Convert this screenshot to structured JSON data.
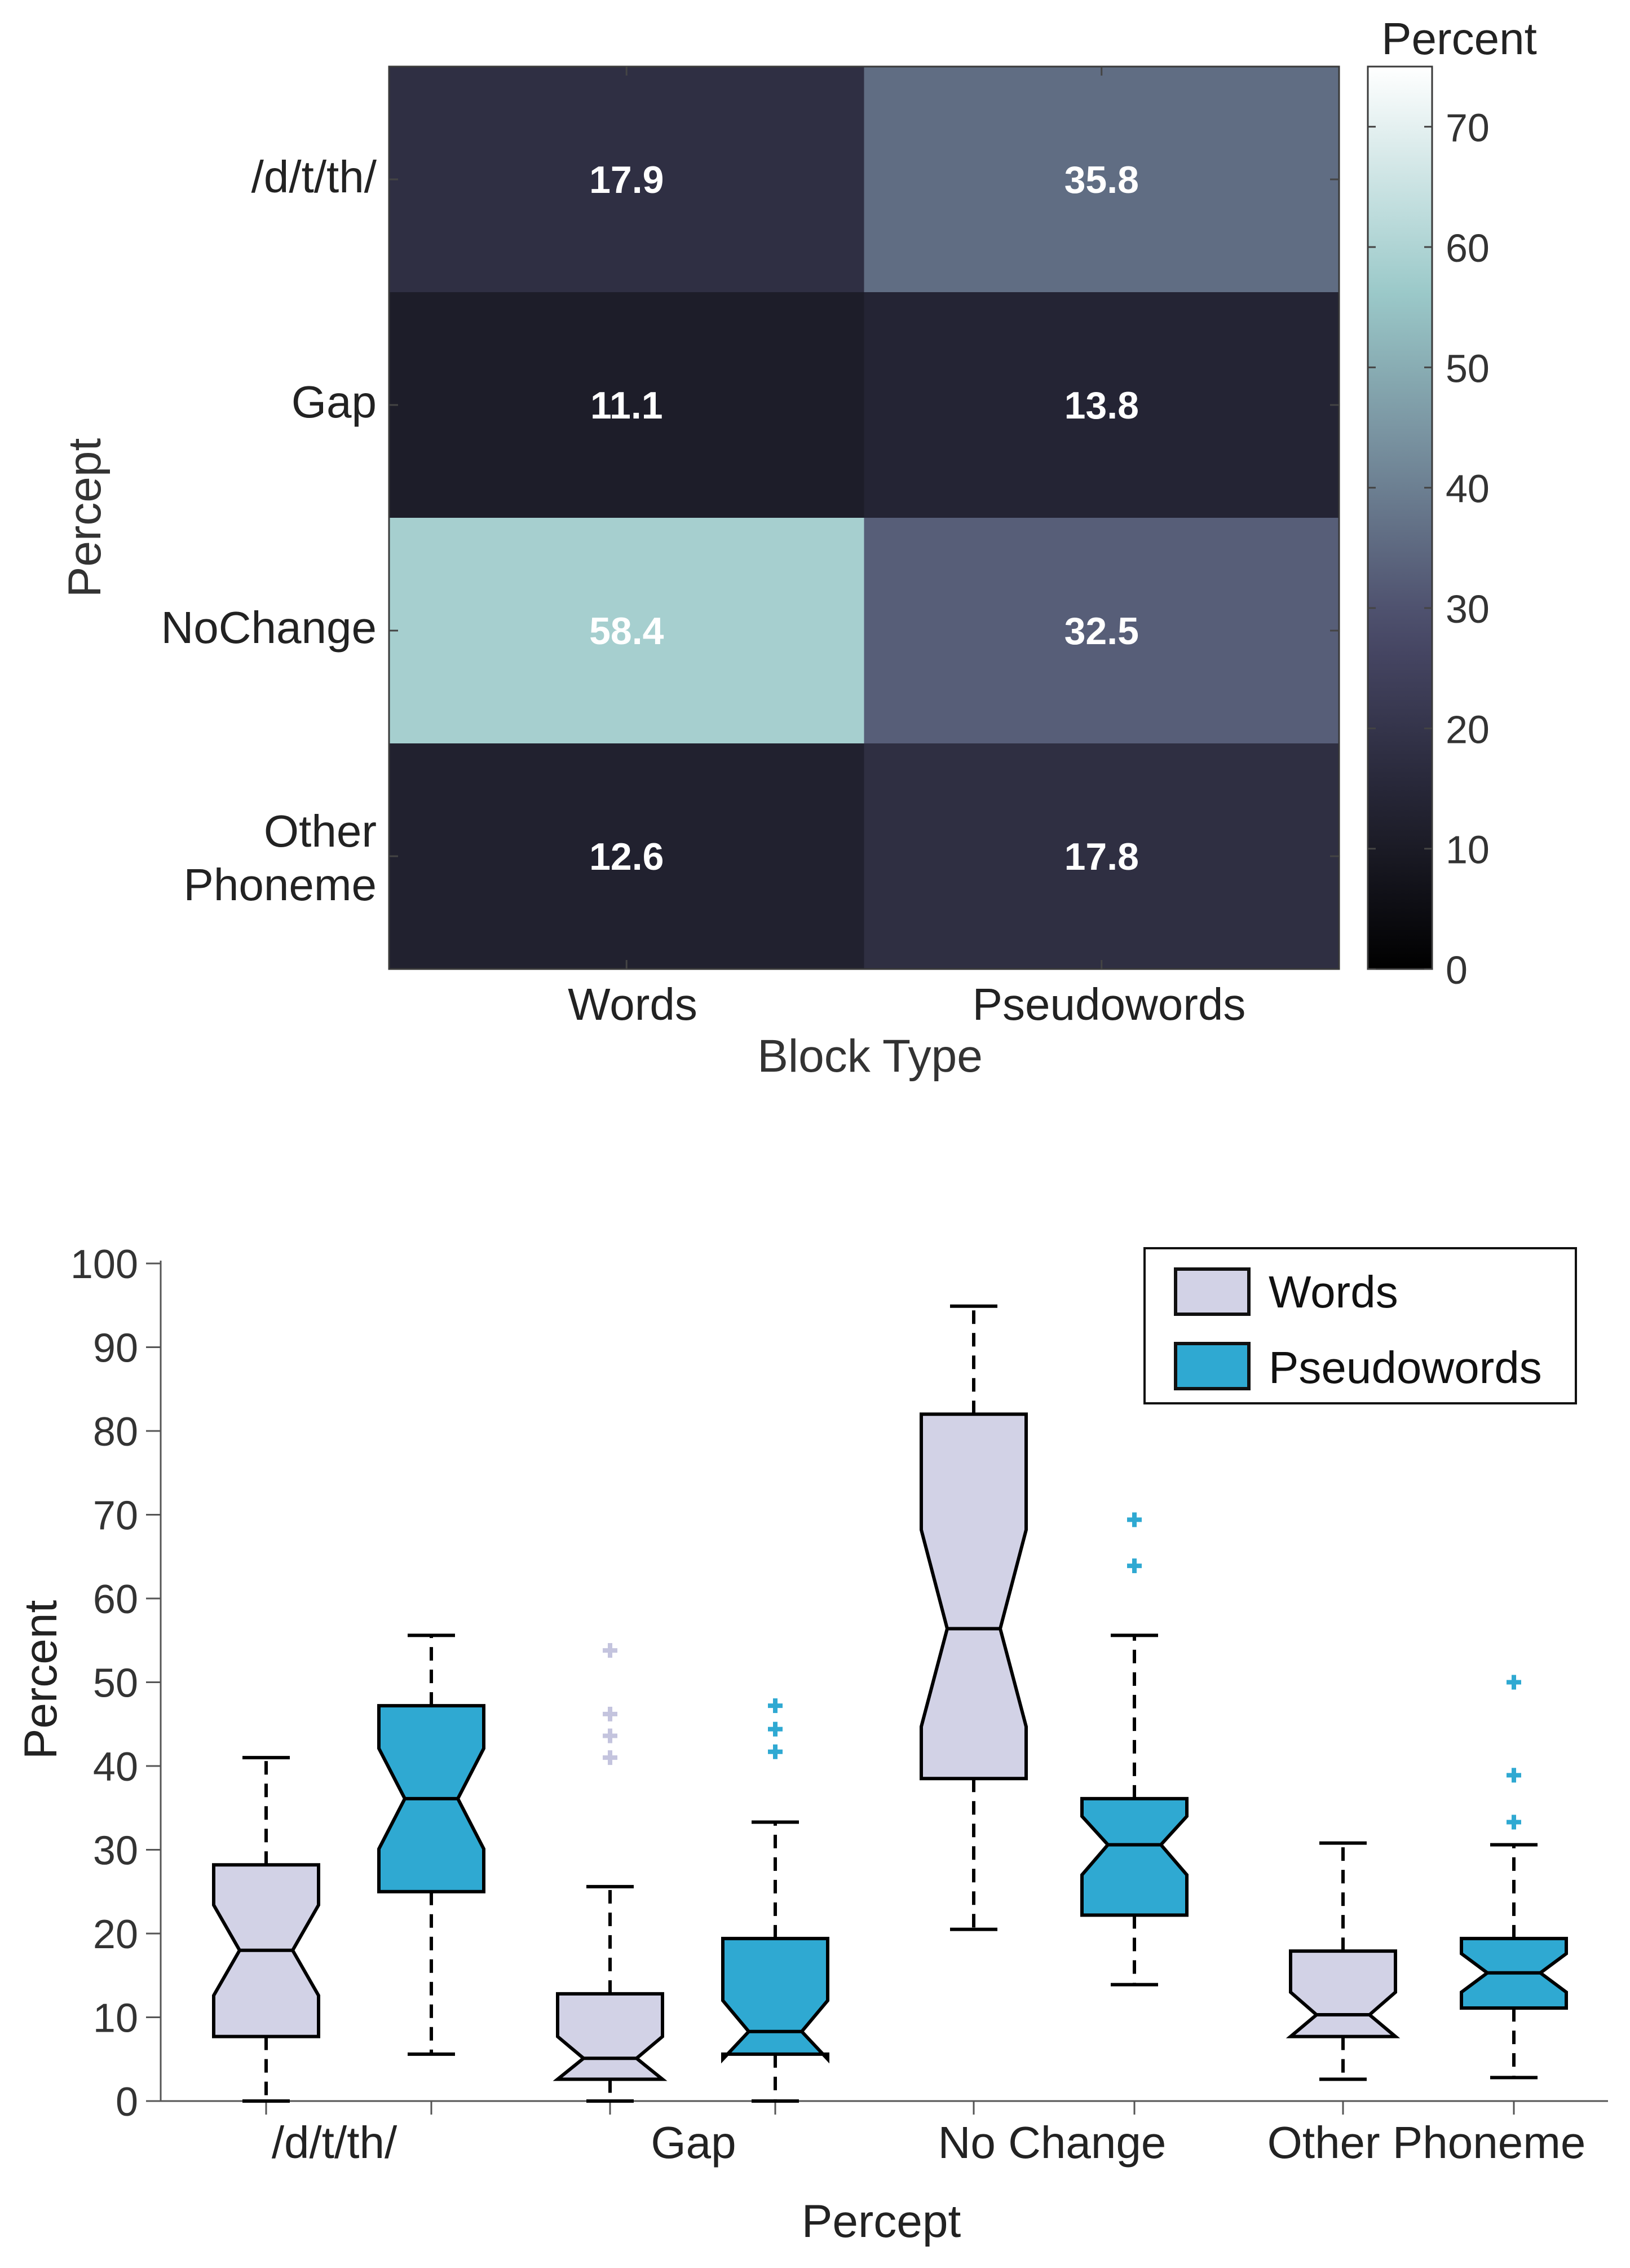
{
  "chart_data": [
    {
      "type": "heatmap",
      "title": "",
      "xlabel": "Block Type",
      "ylabel": "Percept",
      "x_categories": [
        "Words",
        "Pseudowords"
      ],
      "y_categories": [
        "/d/t/th/",
        "Gap",
        "NoChange",
        "Other Phoneme"
      ],
      "values": [
        [
          17.9,
          35.8
        ],
        [
          11.1,
          13.8
        ],
        [
          58.4,
          32.5
        ],
        [
          12.6,
          17.8
        ]
      ],
      "value_labels": [
        [
          "17.9",
          "35.8"
        ],
        [
          "11.1",
          "13.8"
        ],
        [
          "58.4",
          "32.5"
        ],
        [
          "12.6",
          "17.8"
        ]
      ],
      "colorbar": {
        "title": "Percent",
        "range": [
          0,
          75
        ],
        "ticks": [
          0,
          10,
          20,
          30,
          40,
          50,
          60,
          70
        ],
        "colormap": "bone"
      }
    },
    {
      "type": "box",
      "title": "",
      "xlabel": "Percept",
      "ylabel": "Percent",
      "categories": [
        "/d/t/th/",
        "Gap",
        "No Change",
        "Other Phoneme"
      ],
      "ylim": [
        0,
        100
      ],
      "yticks": [
        0,
        10,
        20,
        30,
        40,
        50,
        60,
        70,
        80,
        90,
        100
      ],
      "notched": true,
      "legend": {
        "position": "top-right",
        "entries": [
          "Words",
          "Pseudowords"
        ]
      },
      "series": [
        {
          "name": "Words",
          "color": "#d2d2e6",
          "outlier_color": "#c4c4de",
          "boxes": [
            {
              "category": "/d/t/th/",
              "whisker_low": 0,
              "q1": 7.7,
              "median": 18,
              "q3": 28.2,
              "whisker_high": 41,
              "notch_low": 12.6,
              "notch_high": 23.4,
              "outliers": []
            },
            {
              "category": "Gap",
              "whisker_low": 0,
              "q1": 2.6,
              "median": 5.1,
              "q3": 12.8,
              "whisker_high": 25.6,
              "notch_low": 2.6,
              "notch_high": 7.7,
              "outliers": [
                41,
                43.6,
                46.2,
                53.8
              ]
            },
            {
              "category": "No Change",
              "whisker_low": 20.5,
              "q1": 38.5,
              "median": 56.4,
              "q3": 82,
              "whisker_high": 94.9,
              "notch_low": 44.7,
              "notch_high": 68.2,
              "outliers": []
            },
            {
              "category": "Other Phoneme",
              "whisker_low": 2.6,
              "q1": 7.7,
              "median": 10.3,
              "q3": 17.9,
              "whisker_high": 30.8,
              "notch_low": 7.7,
              "notch_high": 13.0,
              "outliers": []
            }
          ]
        },
        {
          "name": "Pseudowords",
          "color": "#2fa9d2",
          "outlier_color": "#2fa9d2",
          "boxes": [
            {
              "category": "/d/t/th/",
              "whisker_low": 5.6,
              "q1": 25,
              "median": 36.1,
              "q3": 47.2,
              "whisker_high": 55.6,
              "notch_low": 30.1,
              "notch_high": 42.1,
              "outliers": []
            },
            {
              "category": "Gap",
              "whisker_low": 0,
              "q1": 5.6,
              "median": 8.3,
              "q3": 19.4,
              "whisker_high": 33.3,
              "notch_low": 5.0,
              "notch_high": 12.0,
              "outliers": [
                41.7,
                44.4,
                47.2
              ]
            },
            {
              "category": "No Change",
              "whisker_low": 13.9,
              "q1": 22.2,
              "median": 30.6,
              "q3": 36.1,
              "whisker_high": 55.6,
              "notch_low": 27.0,
              "notch_high": 34.0,
              "outliers": [
                63.9,
                69.4
              ]
            },
            {
              "category": "Other Phoneme",
              "whisker_low": 2.8,
              "q1": 11.1,
              "median": 15.3,
              "q3": 19.4,
              "whisker_high": 30.6,
              "notch_low": 13.0,
              "notch_high": 17.6,
              "outliers": [
                33.3,
                38.9,
                50
              ]
            }
          ]
        }
      ]
    }
  ]
}
